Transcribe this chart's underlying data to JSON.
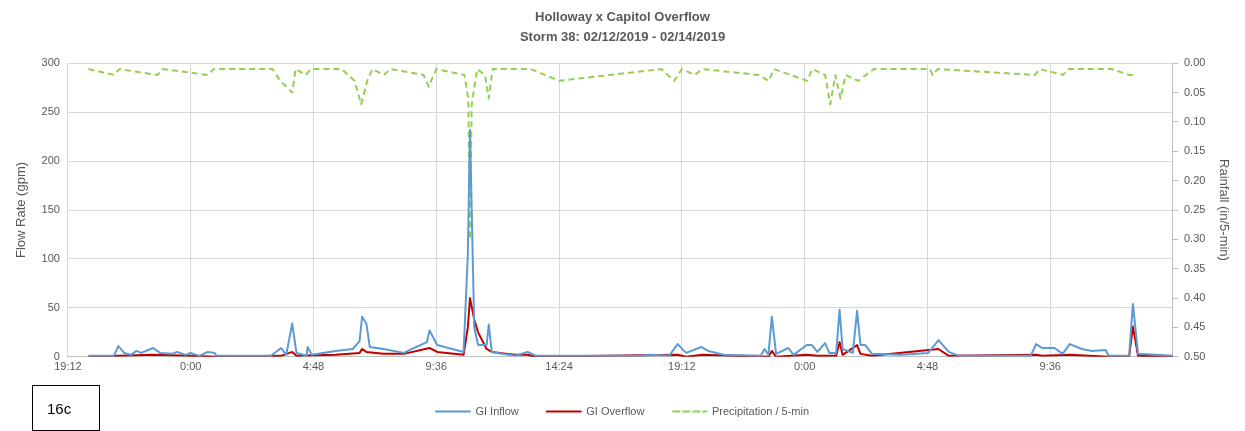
{
  "chart_data": {
    "type": "line",
    "title": "Holloway x Capitol Overflow",
    "subtitle": "Storm 38: 02/12/2019 - 02/14/2019",
    "ylabel": "Flow Rate (gpm)",
    "y2label": "Rainfall (in/5-min)",
    "annotations": [
      "16c"
    ],
    "xlim": [
      "2019-02-12T19:12",
      "2019-02-14T14:24"
    ],
    "xticks": [
      {
        "value": "2019-02-12T19:12",
        "label": "19:12"
      },
      {
        "value": "2019-02-13T00:00",
        "label": "0:00"
      },
      {
        "value": "2019-02-13T04:48",
        "label": "4:48"
      },
      {
        "value": "2019-02-13T09:36",
        "label": "9:36"
      },
      {
        "value": "2019-02-13T14:24",
        "label": "14:24"
      },
      {
        "value": "2019-02-13T19:12",
        "label": "19:12"
      },
      {
        "value": "2019-02-14T00:00",
        "label": "0:00"
      },
      {
        "value": "2019-02-14T04:48",
        "label": "4:48"
      },
      {
        "value": "2019-02-14T09:36",
        "label": "9:36"
      },
      {
        "value": "2019-02-14T14:24",
        "label": null
      }
    ],
    "ylim": [
      0,
      300
    ],
    "yticks": [
      0,
      50,
      100,
      150,
      200,
      250,
      300
    ],
    "y2lim": [
      0.5,
      0
    ],
    "y2ticks": [
      {
        "value": 0,
        "label": "0.00"
      },
      {
        "value": 0.05,
        "label": "0.05"
      },
      {
        "value": 0.1,
        "label": "0.10"
      },
      {
        "value": 0.15,
        "label": "0.15"
      },
      {
        "value": 0.2,
        "label": "0.20"
      },
      {
        "value": 0.25,
        "label": "0.25"
      },
      {
        "value": 0.3,
        "label": "0.30"
      },
      {
        "value": 0.35,
        "label": "0.35"
      },
      {
        "value": 0.4,
        "label": "0.40"
      },
      {
        "value": 0.45,
        "label": "0.45"
      },
      {
        "value": 0.5,
        "label": "0.50"
      }
    ],
    "grid": true,
    "legend": "bottom",
    "marker": "none",
    "series": [
      {
        "name": "GI Inflow",
        "color": "#5b9bd5",
        "x": [
          "2019-02-12T20:00",
          "2019-02-12T21:00",
          "2019-02-12T21:10",
          "2019-02-12T21:24",
          "2019-02-12T21:40",
          "2019-02-12T21:52",
          "2019-02-12T22:04",
          "2019-02-12T22:32",
          "2019-02-12T22:48",
          "2019-02-12T23:16",
          "2019-02-12T23:28",
          "2019-02-12T23:48",
          "2019-02-13T00:00",
          "2019-02-13T00:20",
          "2019-02-13T00:40",
          "2019-02-13T00:56",
          "2019-02-13T01:00",
          "2019-02-13T03:08",
          "2019-02-13T03:32",
          "2019-02-13T03:44",
          "2019-02-13T03:58",
          "2019-02-13T04:08",
          "2019-02-13T04:32",
          "2019-02-13T04:34",
          "2019-02-13T04:44",
          "2019-02-13T05:40",
          "2019-02-13T06:20",
          "2019-02-13T06:36",
          "2019-02-13T06:42",
          "2019-02-13T06:52",
          "2019-02-13T07:00",
          "2019-02-13T07:32",
          "2019-02-13T08:20",
          "2019-02-13T08:34",
          "2019-02-13T09:14",
          "2019-02-13T09:20",
          "2019-02-13T09:38",
          "2019-02-13T10:40",
          "2019-02-13T10:50",
          "2019-02-13T10:55",
          "2019-02-13T11:05",
          "2019-02-13T11:14",
          "2019-02-13T11:34",
          "2019-02-13T11:39",
          "2019-02-13T11:46",
          "2019-02-13T12:42",
          "2019-02-13T13:10",
          "2019-02-13T13:30",
          "2019-02-13T14:50",
          "2019-02-13T17:38",
          "2019-02-13T17:54",
          "2019-02-13T18:42",
          "2019-02-13T19:02",
          "2019-02-13T19:22",
          "2019-02-13T19:58",
          "2019-02-13T20:14",
          "2019-02-13T20:50",
          "2019-02-13T22:17",
          "2019-02-13T22:26",
          "2019-02-13T22:35",
          "2019-02-13T22:43",
          "2019-02-13T22:53",
          "2019-02-13T23:22",
          "2019-02-13T23:34",
          "2019-02-14T00:05",
          "2019-02-14T00:17",
          "2019-02-14T00:30",
          "2019-02-14T00:48",
          "2019-02-14T00:58",
          "2019-02-14T01:14",
          "2019-02-14T01:22",
          "2019-02-14T01:29",
          "2019-02-14T01:53",
          "2019-02-14T02:03",
          "2019-02-14T02:11",
          "2019-02-14T02:22",
          "2019-02-14T02:38",
          "2019-02-14T03:46",
          "2019-02-14T04:50",
          "2019-02-14T05:14",
          "2019-02-14T05:38",
          "2019-02-14T06:02",
          "2019-02-14T08:50",
          "2019-02-14T09:03",
          "2019-02-14T09:17",
          "2019-02-14T09:46",
          "2019-02-14T10:05",
          "2019-02-14T10:22",
          "2019-02-14T10:50",
          "2019-02-14T11:14",
          "2019-02-14T11:46",
          "2019-02-14T11:53",
          "2019-02-14T12:41",
          "2019-02-14T12:50",
          "2019-02-14T13:02",
          "2019-02-14T14:24"
        ],
        "values": [
          1,
          1,
          11,
          4,
          2,
          6,
          4,
          9,
          4,
          3,
          5,
          2,
          4,
          1,
          5,
          4,
          1,
          1,
          9,
          2,
          34,
          4,
          1,
          10,
          2,
          6,
          8,
          16,
          41,
          34,
          10,
          8,
          4,
          7,
          15,
          27,
          12,
          5,
          105,
          232,
          30,
          12,
          12,
          33,
          5,
          1,
          5,
          1,
          1,
          1,
          2,
          1,
          13,
          4,
          10,
          6,
          2,
          1,
          8,
          2,
          41,
          3,
          9,
          2,
          12,
          12,
          5,
          14,
          4,
          4,
          48,
          8,
          4,
          47,
          12,
          12,
          3,
          2,
          4,
          17,
          5,
          1,
          1,
          13,
          9,
          9,
          3,
          13,
          8,
          6,
          7,
          1,
          1,
          54,
          3,
          1
        ]
      },
      {
        "name": "GI Overflow",
        "color": "#c00000",
        "x": [
          "2019-02-12T20:00",
          "2019-02-12T21:10",
          "2019-02-12T22:32",
          "2019-02-13T00:00",
          "2019-02-13T01:00",
          "2019-02-13T03:32",
          "2019-02-13T03:58",
          "2019-02-13T04:08",
          "2019-02-13T05:40",
          "2019-02-13T06:36",
          "2019-02-13T06:42",
          "2019-02-13T06:52",
          "2019-02-13T07:32",
          "2019-02-13T08:20",
          "2019-02-13T09:20",
          "2019-02-13T09:38",
          "2019-02-13T10:40",
          "2019-02-13T10:50",
          "2019-02-13T10:55",
          "2019-02-13T11:05",
          "2019-02-13T11:14",
          "2019-02-13T11:34",
          "2019-02-13T11:46",
          "2019-02-13T12:42",
          "2019-02-13T13:10",
          "2019-02-13T13:30",
          "2019-02-13T19:02",
          "2019-02-13T19:22",
          "2019-02-13T20:00",
          "2019-02-13T22:35",
          "2019-02-13T22:43",
          "2019-02-13T22:53",
          "2019-02-14T00:05",
          "2019-02-14T00:30",
          "2019-02-14T01:14",
          "2019-02-14T01:22",
          "2019-02-14T01:29",
          "2019-02-14T02:03",
          "2019-02-14T02:11",
          "2019-02-14T02:38",
          "2019-02-14T05:14",
          "2019-02-14T05:38",
          "2019-02-14T09:03",
          "2019-02-14T09:17",
          "2019-02-14T10:22",
          "2019-02-14T11:53",
          "2019-02-14T12:41",
          "2019-02-14T12:50",
          "2019-02-14T13:02",
          "2019-02-14T14:24"
        ],
        "values": [
          0,
          1,
          2,
          1,
          0,
          1,
          5,
          1,
          2,
          4,
          8,
          5,
          3,
          3,
          9,
          5,
          2,
          30,
          60,
          38,
          25,
          8,
          5,
          2,
          2,
          0,
          2,
          0,
          2,
          0,
          6,
          0,
          2,
          1,
          1,
          15,
          2,
          12,
          3,
          1,
          8,
          1,
          2,
          1,
          2,
          0,
          0,
          31,
          1,
          0
        ]
      },
      {
        "name": "Precipitation / 5-min",
        "color": "#92d050",
        "axis": "y2",
        "line_style": "dashed",
        "x": [
          "2019-02-12T20:00",
          "2019-02-12T21:00",
          "2019-02-12T21:12",
          "2019-02-12T22:42",
          "2019-02-12T22:54",
          "2019-02-13T00:40",
          "2019-02-13T00:54",
          "2019-02-13T03:12",
          "2019-02-13T03:30",
          "2019-02-13T03:58",
          "2019-02-13T04:06",
          "2019-02-13T04:30",
          "2019-02-13T04:42",
          "2019-02-13T05:54",
          "2019-02-13T06:24",
          "2019-02-13T06:40",
          "2019-02-13T06:54",
          "2019-02-13T07:06",
          "2019-02-13T07:33",
          "2019-02-13T07:48",
          "2019-02-13T09:06",
          "2019-02-13T09:18",
          "2019-02-13T09:36",
          "2019-02-13T10:42",
          "2019-02-13T10:51",
          "2019-02-13T10:55",
          "2019-02-13T10:59",
          "2019-02-13T11:12",
          "2019-02-13T11:30",
          "2019-02-13T11:39",
          "2019-02-13T11:48",
          "2019-02-13T13:18",
          "2019-02-13T14:24",
          "2019-02-13T18:24",
          "2019-02-13T18:54",
          "2019-02-13T19:12",
          "2019-02-13T19:42",
          "2019-02-13T20:00",
          "2019-02-13T22:12",
          "2019-02-13T22:36",
          "2019-02-13T22:48",
          "2019-02-14T00:06",
          "2019-02-14T00:18",
          "2019-02-14T00:48",
          "2019-02-14T01:00",
          "2019-02-14T01:12",
          "2019-02-14T01:24",
          "2019-02-14T01:36",
          "2019-02-14T02:06",
          "2019-02-14T02:24",
          "2019-02-14T02:42",
          "2019-02-14T04:54",
          "2019-02-14T05:00",
          "2019-02-14T05:12",
          "2019-02-14T09:00",
          "2019-02-14T09:12",
          "2019-02-14T10:06",
          "2019-02-14T10:18",
          "2019-02-14T12:00",
          "2019-02-14T12:42",
          "2019-02-14T12:50"
        ],
        "values": [
          0.01,
          0.02,
          0.01,
          0.02,
          0.01,
          0.02,
          0.01,
          0.01,
          0.03,
          0.05,
          0.01,
          0.02,
          0.01,
          0.01,
          0.03,
          0.07,
          0.03,
          0.01,
          0.02,
          0.01,
          0.02,
          0.04,
          0.01,
          0.02,
          0.06,
          0.3,
          0.07,
          0.01,
          0.02,
          0.06,
          0.01,
          0.01,
          0.03,
          0.01,
          0.03,
          0.01,
          0.02,
          0.01,
          0.02,
          0.03,
          0.01,
          0.03,
          0.01,
          0.02,
          0.07,
          0.02,
          0.06,
          0.02,
          0.03,
          0.02,
          0.01,
          0.01,
          0.02,
          0.01,
          0.02,
          0.01,
          0.02,
          0.01,
          0.01,
          0.02,
          0.02
        ]
      }
    ]
  }
}
